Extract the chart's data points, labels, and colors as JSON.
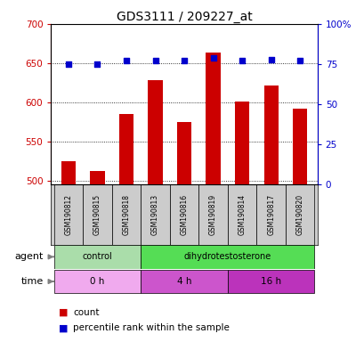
{
  "title": "GDS3111 / 209227_at",
  "samples": [
    "GSM190812",
    "GSM190815",
    "GSM190818",
    "GSM190813",
    "GSM190816",
    "GSM190819",
    "GSM190814",
    "GSM190817",
    "GSM190820"
  ],
  "bar_values": [
    525,
    512,
    585,
    628,
    575,
    663,
    601,
    622,
    592
  ],
  "percentile_values": [
    75,
    75,
    77,
    77,
    77,
    79,
    77,
    78,
    77
  ],
  "bar_color": "#cc0000",
  "dot_color": "#0000cc",
  "ylim_left": [
    495,
    700
  ],
  "ylim_right": [
    0,
    100
  ],
  "yticks_left": [
    500,
    550,
    600,
    650,
    700
  ],
  "yticks_right": [
    0,
    25,
    50,
    75,
    100
  ],
  "agent_labels": [
    {
      "label": "control",
      "start": 0,
      "end": 3,
      "color": "#aaeea a"
    },
    {
      "label": "dihydrotestosterone",
      "start": 3,
      "end": 9,
      "color": "#55dd55"
    }
  ],
  "time_labels": [
    {
      "label": "0 h",
      "start": 0,
      "end": 3,
      "color": "#f0aaee"
    },
    {
      "label": "4 h",
      "start": 3,
      "end": 6,
      "color": "#cc55cc"
    },
    {
      "label": "16 h",
      "start": 6,
      "end": 9,
      "color": "#bb33bb"
    }
  ],
  "legend_count_color": "#cc0000",
  "legend_dot_color": "#0000cc",
  "bg_color": "#ffffff",
  "tick_label_color_left": "#cc0000",
  "tick_label_color_right": "#0000cc",
  "sample_box_color": "#cccccc",
  "agent_control_color": "#aaddaa",
  "agent_dht_color": "#55dd55",
  "time_0h_color": "#f0aaee",
  "time_4h_color": "#cc55cc",
  "time_16h_color": "#bb33bb"
}
